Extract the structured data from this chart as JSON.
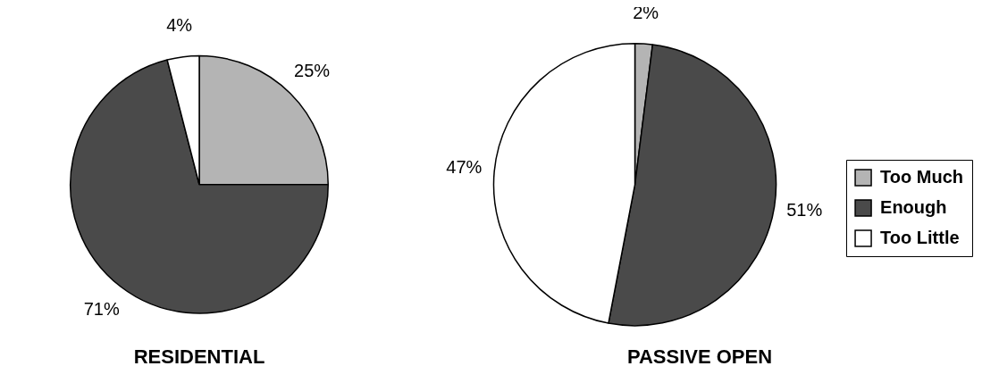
{
  "chart_data": {
    "type": "pie",
    "categories": [
      "Too Much",
      "Enough",
      "Too Little"
    ],
    "colors": [
      "#b4b4b4",
      "#4a4a4a",
      "#ffffff"
    ],
    "legend": "right",
    "series": [
      {
        "name": "RESIDENTIAL",
        "values": [
          25,
          71,
          4
        ],
        "value_labels": [
          "25%",
          "71%",
          "4%"
        ]
      },
      {
        "name": "PASSIVE OPEN",
        "values": [
          2,
          51,
          47
        ],
        "value_labels": [
          "2%",
          "51%",
          "47%"
        ]
      }
    ]
  }
}
